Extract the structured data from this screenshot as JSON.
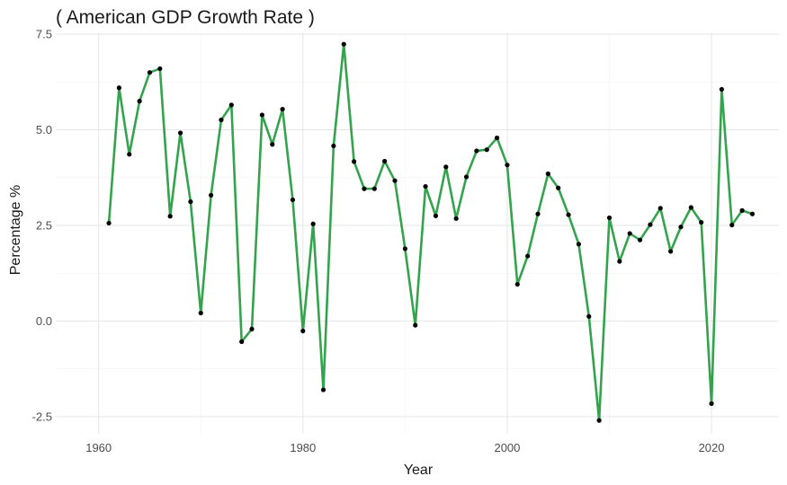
{
  "chart_data": {
    "type": "line",
    "title": "( American GDP Growth Rate )",
    "xlabel": "Year",
    "ylabel": "Percentage %",
    "xlim": [
      1955.8,
      2026.6
    ],
    "ylim": [
      -2.95,
      7.55
    ],
    "x_ticks": [
      1960,
      1980,
      2000,
      2020
    ],
    "y_ticks": [
      -2.5,
      0.0,
      2.5,
      5.0,
      7.5
    ],
    "x_tick_labels": [
      "1960",
      "1980",
      "2000",
      "2020"
    ],
    "y_tick_labels": [
      "-2.5",
      "0.0",
      "2.5",
      "5.0",
      "7.5"
    ],
    "grid": true,
    "line_color": "#33a34d",
    "point_color": "#000000",
    "series": [
      {
        "x": [
          1961,
          1962,
          1963,
          1964,
          1965,
          1966,
          1967,
          1968,
          1969,
          1970,
          1971,
          1972,
          1973,
          1974,
          1975,
          1976,
          1977,
          1978,
          1979,
          1980,
          1981,
          1982,
          1983,
          1984,
          1985,
          1986,
          1987,
          1988,
          1989,
          1990,
          1991,
          1992,
          1993,
          1994,
          1995,
          1996,
          1997,
          1998,
          1999,
          2000,
          2001,
          2002,
          2003,
          2004,
          2005,
          2006,
          2007,
          2008,
          2009,
          2010,
          2011,
          2012,
          2013,
          2014,
          2015,
          2016,
          2017,
          2018,
          2019,
          2020,
          2021,
          2022,
          2023,
          2024
        ],
        "values": [
          2.56,
          6.1,
          4.36,
          5.75,
          6.5,
          6.6,
          2.74,
          4.92,
          3.12,
          0.21,
          3.29,
          5.26,
          5.65,
          -0.54,
          -0.21,
          5.39,
          4.62,
          5.54,
          3.17,
          -0.26,
          2.54,
          -1.8,
          4.58,
          7.24,
          4.17,
          3.46,
          3.46,
          4.18,
          3.67,
          1.89,
          -0.11,
          3.52,
          2.75,
          4.03,
          2.68,
          3.77,
          4.45,
          4.48,
          4.79,
          4.08,
          0.96,
          1.7,
          2.8,
          3.85,
          3.48,
          2.78,
          2.01,
          0.12,
          -2.6,
          2.7,
          1.56,
          2.29,
          2.12,
          2.52,
          2.95,
          1.82,
          2.46,
          2.97,
          2.58,
          -2.16,
          6.06,
          2.51,
          2.89,
          2.8
        ]
      }
    ]
  }
}
